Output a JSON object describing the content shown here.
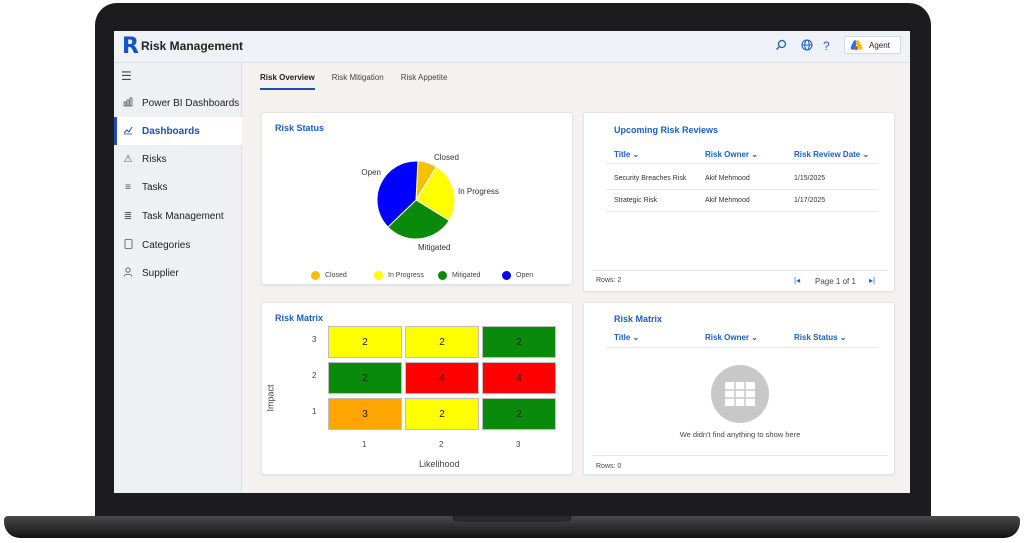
{
  "app": {
    "logo_letter": "R",
    "title": "Risk Management"
  },
  "header": {
    "search_icon": "search-icon",
    "globe_icon": "globe-icon",
    "help_symbol": "?",
    "agent_label": "Agent"
  },
  "sidebar": {
    "items": [
      {
        "label": "Power BI Dashboards",
        "icon": "chart-icon",
        "active": false
      },
      {
        "label": "Dashboards",
        "icon": "line-chart-icon",
        "active": true
      },
      {
        "label": "Risks",
        "icon": "warning-icon",
        "active": false
      },
      {
        "label": "Tasks",
        "icon": "list-icon",
        "active": false
      },
      {
        "label": "Task Management",
        "icon": "checklist-icon",
        "active": false
      },
      {
        "label": "Categories",
        "icon": "document-icon",
        "active": false
      },
      {
        "label": "Supplier",
        "icon": "person-icon",
        "active": false
      }
    ]
  },
  "tabs": [
    {
      "label": "Risk Overview",
      "active": true
    },
    {
      "label": "Risk Mitigation",
      "active": false
    },
    {
      "label": "Risk Appetite",
      "active": false
    }
  ],
  "risk_status": {
    "title": "Risk Status",
    "slices": [
      {
        "label": "Closed",
        "value": 8,
        "color": "#f5c000"
      },
      {
        "label": "In Progress",
        "value": 25,
        "color": "#ffff00"
      },
      {
        "label": "Mitigated",
        "value": 29,
        "color": "#0a8a0a"
      },
      {
        "label": "Open",
        "value": 38,
        "color": "#0000ff"
      }
    ],
    "legend": [
      "Closed",
      "In Progress",
      "Mitigated",
      "Open"
    ]
  },
  "upcoming_reviews": {
    "title": "Upcoming Risk Reviews",
    "columns": [
      "Title",
      "Risk Owner",
      "Risk Review Date"
    ],
    "rows": [
      [
        "Security Breaches Risk",
        "Akif Mehmood",
        "1/15/2025"
      ],
      [
        "Strategic Risk",
        "Akif Mehmood",
        "1/17/2025"
      ]
    ],
    "rows_label": "Rows: 2",
    "page_label": "Page 1 of 1"
  },
  "risk_matrix": {
    "title": "Risk Matrix",
    "y_label": "Impact",
    "x_label": "Likelihood",
    "y_ticks": [
      "3",
      "2",
      "1"
    ],
    "x_ticks": [
      "1",
      "2",
      "3"
    ],
    "cells": [
      [
        {
          "v": "2",
          "color": "#ffff00"
        },
        {
          "v": "2",
          "color": "#ffff00"
        },
        {
          "v": "2",
          "color": "#0a8a0a"
        }
      ],
      [
        {
          "v": "2",
          "color": "#0a8a0a"
        },
        {
          "v": "4",
          "color": "#ff0000"
        },
        {
          "v": "4",
          "color": "#ff0000"
        }
      ],
      [
        {
          "v": "3",
          "color": "#ffa500"
        },
        {
          "v": "2",
          "color": "#ffff00"
        },
        {
          "v": "2",
          "color": "#0a8a0a"
        }
      ]
    ]
  },
  "risk_matrix_list": {
    "title": "Risk Matrix",
    "columns": [
      "Title",
      "Risk Owner",
      "Risk Status"
    ],
    "empty_message": "We didn't find anything to show here",
    "rows_label": "Rows: 0"
  },
  "colors": {
    "accent": "#1a4fb8",
    "link": "#1a5fc7"
  }
}
